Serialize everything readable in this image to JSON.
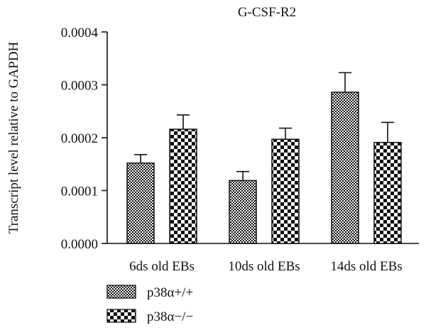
{
  "chart_data": {
    "type": "bar",
    "title": "G-CSF-R2",
    "xlabel": "",
    "ylabel": "Transcript level relative to GAPDH",
    "ylim": [
      0,
      0.0004
    ],
    "yticks": [
      "0.0000",
      "0.0001",
      "0.0002",
      "0.0003",
      "0.0004"
    ],
    "categories": [
      "6ds old EBs",
      "10ds old EBs",
      "14ds old EBs"
    ],
    "series": [
      {
        "name": "p38α+/+",
        "values": [
          0.000152,
          0.000119,
          0.000286
        ],
        "errors": [
          1.6e-05,
          1.7e-05,
          3.7e-05
        ],
        "pattern": "hatch"
      },
      {
        "name": "p38α−/−",
        "values": [
          0.000216,
          0.000197,
          0.000191
        ],
        "errors": [
          2.7e-05,
          2.1e-05,
          3.8e-05
        ],
        "pattern": "checker"
      }
    ],
    "legend_position": "bottom-left",
    "grid": false
  }
}
